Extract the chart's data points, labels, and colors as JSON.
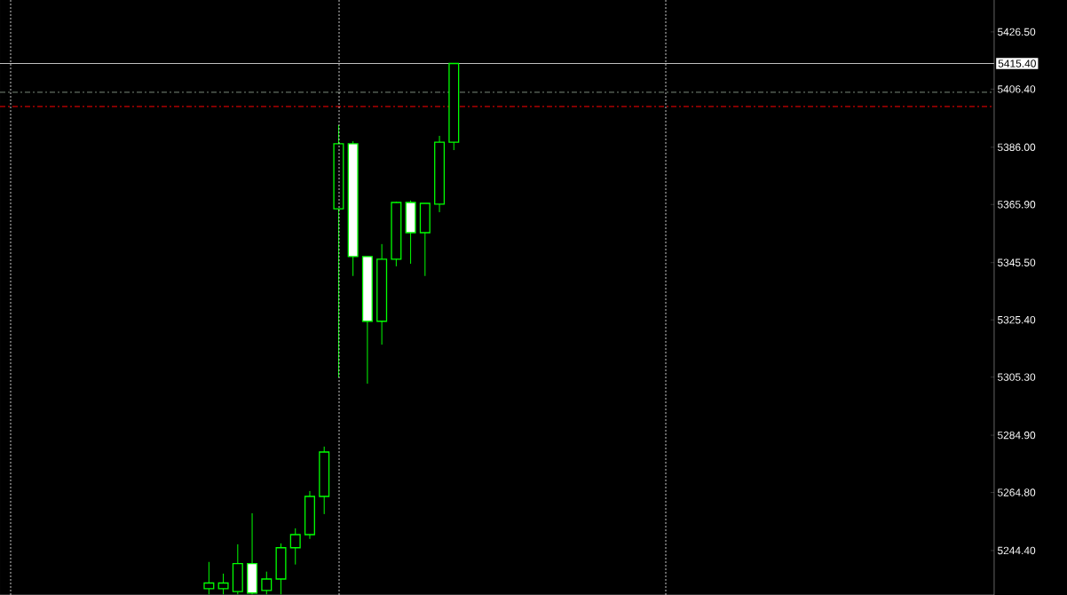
{
  "chart_data": {
    "type": "candlestick",
    "color": "#00ff00",
    "categories": [
      null,
      null,
      null,
      null,
      null,
      null,
      null,
      null,
      null,
      null,
      null,
      null,
      null,
      null,
      null,
      null,
      null,
      null,
      null,
      null,
      null,
      null,
      null,
      null,
      null,
      null,
      null,
      null,
      null,
      null,
      null,
      null,
      null,
      null,
      null,
      null,
      null,
      null,
      null,
      null,
      null,
      null,
      null,
      null,
      null,
      null,
      null,
      null,
      null,
      null,
      null,
      null,
      null,
      null,
      null,
      null,
      null,
      null,
      null,
      null,
      null,
      null,
      null,
      null,
      null,
      null,
      null,
      null,
      null
    ],
    "ohlc": [
      null,
      null,
      null,
      null,
      null,
      null,
      null,
      null,
      null,
      null,
      null,
      null,
      null,
      null,
      [
        5231,
        5240.4,
        5229,
        5233
      ],
      [
        5231,
        5236.3,
        5229,
        5233
      ],
      [
        5230,
        5246.6,
        5229,
        5239.8
      ],
      [
        5239.8,
        5257.5,
        5229,
        5229.5
      ],
      [
        5230.4,
        5237.0,
        5229,
        5234.4
      ],
      [
        5234.4,
        5246.9,
        5229,
        5245.4
      ],
      [
        5245.4,
        5252.2,
        5239.5,
        5250.0
      ],
      [
        5250.0,
        5265.3,
        5248.5,
        5263.4
      ],
      [
        5263.4,
        5280.9,
        5257.2,
        5279.0
      ],
      [
        5364.4,
        5393.8,
        5305.2,
        5387.2
      ],
      [
        5387.2,
        5388.1,
        5340.8,
        5347.6
      ],
      [
        5347.6,
        5347.6,
        5303.0,
        5324.9
      ],
      [
        5324.9,
        5352.0,
        5316.7,
        5346.7
      ],
      [
        5346.7,
        5366.9,
        5344.2,
        5366.6
      ],
      [
        5366.6,
        5367.3,
        5345.1,
        5356.0
      ],
      [
        5356.0,
        5366.3,
        5340.8,
        5366.3
      ],
      [
        5366.0,
        5390.0,
        5363.2,
        5387.8
      ],
      [
        5387.8,
        5415.4,
        5385.0,
        5415.4
      ],
      null,
      null,
      null,
      null,
      null,
      null,
      null,
      null,
      null,
      null,
      null,
      null,
      null,
      null,
      null,
      null,
      null,
      null,
      null,
      null,
      null,
      null,
      null,
      null,
      null,
      null,
      null,
      null,
      null,
      null,
      null,
      null,
      null,
      null,
      null,
      null,
      null
    ],
    "ylim": [
      5228.8,
      5437.7
    ],
    "yticks": [
      {
        "value": 5244.4,
        "label": "5244.40"
      },
      {
        "value": 5264.8,
        "label": "5264.80"
      },
      {
        "value": 5284.9,
        "label": "5284.90"
      },
      {
        "value": 5305.3,
        "label": "5305.30"
      },
      {
        "value": 5325.4,
        "label": "5325.40"
      },
      {
        "value": 5345.5,
        "label": "5345.50"
      },
      {
        "value": 5365.9,
        "label": "5365.90"
      },
      {
        "value": 5386.0,
        "label": "5386.00"
      },
      {
        "value": 5406.4,
        "label": "5406.40"
      },
      {
        "value": 5426.5,
        "label": "5426.50"
      }
    ],
    "tick_labels": "y",
    "ref_lines": [
      {
        "axis": "y",
        "value": 5415.4,
        "label": "5415.40",
        "color": "#c0c0c0",
        "line_style": "solid"
      },
      {
        "axis": "y",
        "value": 5405.3,
        "color": "#7a8a7a",
        "line_style": "dashed"
      },
      {
        "axis": "y",
        "value": 5400.3,
        "color": "#ff0000",
        "line_style": "dashed"
      }
    ]
  }
}
